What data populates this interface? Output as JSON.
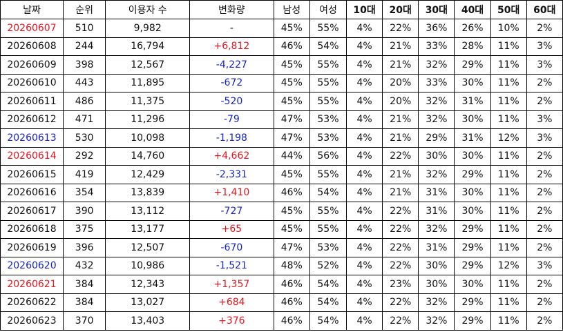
{
  "headers": [
    "날짜",
    "순위",
    "이용자 수",
    "변화량",
    "남성",
    "여성",
    "10대",
    "20대",
    "30대",
    "40대",
    "50대",
    "60대"
  ],
  "colors": {
    "red": "#e8141d",
    "blue": "#1524c9",
    "black": "#111111"
  },
  "rows": [
    {
      "date": "20260607",
      "date_color": "red",
      "rank": "510",
      "users": "9,982",
      "change": "-",
      "change_color": "black",
      "male": "45%",
      "female": "55%",
      "a10": "4%",
      "a20": "22%",
      "a30": "36%",
      "a40": "26%",
      "a50": "10%",
      "a60": "2%"
    },
    {
      "date": "20260608",
      "date_color": "black",
      "rank": "244",
      "users": "16,794",
      "change": "+6,812",
      "change_color": "red",
      "male": "46%",
      "female": "54%",
      "a10": "4%",
      "a20": "21%",
      "a30": "33%",
      "a40": "28%",
      "a50": "11%",
      "a60": "3%"
    },
    {
      "date": "20260609",
      "date_color": "black",
      "rank": "398",
      "users": "12,567",
      "change": "-4,227",
      "change_color": "blue",
      "male": "45%",
      "female": "55%",
      "a10": "4%",
      "a20": "21%",
      "a30": "32%",
      "a40": "29%",
      "a50": "11%",
      "a60": "3%"
    },
    {
      "date": "20260610",
      "date_color": "black",
      "rank": "443",
      "users": "11,895",
      "change": "-672",
      "change_color": "blue",
      "male": "45%",
      "female": "55%",
      "a10": "4%",
      "a20": "20%",
      "a30": "33%",
      "a40": "30%",
      "a50": "11%",
      "a60": "2%"
    },
    {
      "date": "20260611",
      "date_color": "black",
      "rank": "486",
      "users": "11,375",
      "change": "-520",
      "change_color": "blue",
      "male": "45%",
      "female": "55%",
      "a10": "4%",
      "a20": "20%",
      "a30": "32%",
      "a40": "31%",
      "a50": "11%",
      "a60": "2%"
    },
    {
      "date": "20260612",
      "date_color": "black",
      "rank": "471",
      "users": "11,296",
      "change": "-79",
      "change_color": "blue",
      "male": "47%",
      "female": "53%",
      "a10": "4%",
      "a20": "21%",
      "a30": "32%",
      "a40": "30%",
      "a50": "11%",
      "a60": "3%"
    },
    {
      "date": "20260613",
      "date_color": "blue",
      "rank": "530",
      "users": "10,098",
      "change": "-1,198",
      "change_color": "blue",
      "male": "47%",
      "female": "53%",
      "a10": "4%",
      "a20": "21%",
      "a30": "29%",
      "a40": "31%",
      "a50": "12%",
      "a60": "3%"
    },
    {
      "date": "20260614",
      "date_color": "red",
      "rank": "292",
      "users": "14,760",
      "change": "+4,662",
      "change_color": "red",
      "male": "44%",
      "female": "56%",
      "a10": "4%",
      "a20": "22%",
      "a30": "30%",
      "a40": "30%",
      "a50": "11%",
      "a60": "2%"
    },
    {
      "date": "20260615",
      "date_color": "black",
      "rank": "419",
      "users": "12,429",
      "change": "-2,331",
      "change_color": "blue",
      "male": "45%",
      "female": "55%",
      "a10": "4%",
      "a20": "21%",
      "a30": "32%",
      "a40": "29%",
      "a50": "11%",
      "a60": "2%"
    },
    {
      "date": "20260616",
      "date_color": "black",
      "rank": "354",
      "users": "13,839",
      "change": "+1,410",
      "change_color": "red",
      "male": "46%",
      "female": "54%",
      "a10": "4%",
      "a20": "21%",
      "a30": "31%",
      "a40": "30%",
      "a50": "11%",
      "a60": "2%"
    },
    {
      "date": "20260617",
      "date_color": "black",
      "rank": "390",
      "users": "13,112",
      "change": "-727",
      "change_color": "blue",
      "male": "45%",
      "female": "55%",
      "a10": "4%",
      "a20": "22%",
      "a30": "31%",
      "a40": "30%",
      "a50": "11%",
      "a60": "2%"
    },
    {
      "date": "20260618",
      "date_color": "black",
      "rank": "375",
      "users": "13,177",
      "change": "+65",
      "change_color": "red",
      "male": "45%",
      "female": "55%",
      "a10": "4%",
      "a20": "22%",
      "a30": "32%",
      "a40": "29%",
      "a50": "11%",
      "a60": "2%"
    },
    {
      "date": "20260619",
      "date_color": "black",
      "rank": "396",
      "users": "12,507",
      "change": "-670",
      "change_color": "blue",
      "male": "47%",
      "female": "53%",
      "a10": "4%",
      "a20": "22%",
      "a30": "31%",
      "a40": "29%",
      "a50": "11%",
      "a60": "2%"
    },
    {
      "date": "20260620",
      "date_color": "blue",
      "rank": "432",
      "users": "10,986",
      "change": "-1,521",
      "change_color": "blue",
      "male": "48%",
      "female": "52%",
      "a10": "4%",
      "a20": "22%",
      "a30": "30%",
      "a40": "29%",
      "a50": "12%",
      "a60": "3%"
    },
    {
      "date": "20260621",
      "date_color": "red",
      "rank": "384",
      "users": "12,343",
      "change": "+1,357",
      "change_color": "red",
      "male": "46%",
      "female": "54%",
      "a10": "4%",
      "a20": "23%",
      "a30": "30%",
      "a40": "30%",
      "a50": "11%",
      "a60": "2%"
    },
    {
      "date": "20260622",
      "date_color": "black",
      "rank": "384",
      "users": "13,027",
      "change": "+684",
      "change_color": "red",
      "male": "46%",
      "female": "54%",
      "a10": "4%",
      "a20": "22%",
      "a30": "32%",
      "a40": "29%",
      "a50": "11%",
      "a60": "2%"
    },
    {
      "date": "20260623",
      "date_color": "black",
      "rank": "370",
      "users": "13,403",
      "change": "+376",
      "change_color": "red",
      "male": "46%",
      "female": "54%",
      "a10": "4%",
      "a20": "22%",
      "a30": "32%",
      "a40": "29%",
      "a50": "11%",
      "a60": "2%"
    }
  ]
}
